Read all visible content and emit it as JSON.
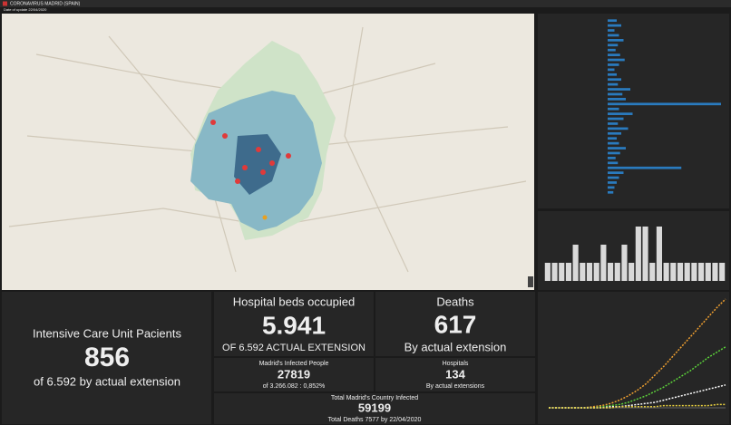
{
  "header": {
    "title": "CORONAVIRUS MADRID (SPAIN)",
    "subtitle": "Date of update 22/04/2020"
  },
  "indicators": [
    {
      "title": "Intensive Care Unit Pacients",
      "value": "856",
      "subtitle": "of 6.592 by actual extension"
    },
    {
      "title": "Hospital beds occupied",
      "value": "5.941",
      "subtitle": "OF 6.592 ACTUAL EXTENSION"
    },
    {
      "title": "Deaths",
      "value": "617",
      "subtitle": "By actual extension"
    },
    {
      "title": "Madrid's Infected People",
      "value": "27819",
      "subtitle": "of 3.266.082 : 0,852%"
    },
    {
      "title": "Hospitals",
      "value": "134",
      "subtitle": "By actual extensions"
    },
    {
      "title": "Total Madrid's Country Infected",
      "value": "59199",
      "subtitle": "Total Deaths 7577 by 22/04/2020"
    }
  ],
  "chart_data": [
    {
      "type": "hbar",
      "color": "#2a7bbf",
      "xlim": [
        0,
        100
      ],
      "categories": [
        null,
        null,
        null,
        null,
        null,
        null,
        null,
        null,
        null,
        null,
        null,
        null,
        null,
        null,
        null,
        null,
        null,
        null,
        null,
        null,
        null,
        null,
        null,
        null,
        null,
        null,
        null,
        null,
        null,
        null,
        null,
        null,
        null,
        null,
        null,
        null
      ],
      "values": [
        8,
        12,
        6,
        10,
        14,
        9,
        7,
        11,
        15,
        10,
        6,
        8,
        12,
        9,
        20,
        13,
        16,
        100,
        10,
        22,
        14,
        9,
        18,
        12,
        8,
        10,
        16,
        11,
        7,
        9,
        65,
        14,
        10,
        8,
        6,
        5
      ]
    },
    {
      "type": "bar",
      "color": "#d9d9d9",
      "ylim": [
        0,
        3.5
      ],
      "categories": [
        null,
        null,
        null,
        null,
        null,
        null,
        null,
        null,
        null,
        null,
        null,
        null,
        null,
        null,
        null,
        null,
        null,
        null,
        null,
        null,
        null,
        null,
        null,
        null,
        null,
        null
      ],
      "values": [
        1,
        1,
        1,
        1,
        2,
        1,
        1,
        1,
        2,
        1,
        1,
        2,
        1,
        3,
        3,
        1,
        3,
        1,
        1,
        1,
        1,
        1,
        1,
        1,
        1,
        1
      ]
    },
    {
      "type": "line",
      "ylim": [
        0,
        100
      ],
      "x": [
        null,
        null,
        null,
        null,
        null,
        null,
        null,
        null,
        null,
        null,
        null,
        null,
        null,
        null,
        null,
        null,
        null,
        null,
        null,
        null,
        null
      ],
      "series": [
        {
          "color": "#f0a030",
          "values": [
            0,
            0,
            0,
            0,
            0,
            1,
            2,
            4,
            7,
            11,
            16,
            22,
            30,
            38,
            47,
            56,
            65,
            74,
            83,
            92,
            100
          ]
        },
        {
          "color": "#5cd13a",
          "values": [
            0,
            0,
            0,
            0,
            0,
            0,
            1,
            2,
            3,
            5,
            8,
            11,
            15,
            19,
            24,
            29,
            34,
            40,
            46,
            51,
            56
          ]
        },
        {
          "color": "#ffffff",
          "values": [
            0,
            0,
            0,
            0,
            0,
            0,
            0,
            1,
            1,
            2,
            3,
            4,
            5,
            7,
            9,
            11,
            13,
            15,
            17,
            19,
            21
          ]
        },
        {
          "color": "#e8d040",
          "values": [
            0,
            0,
            0,
            0,
            0,
            0,
            0,
            0,
            1,
            1,
            1,
            1,
            1,
            2,
            2,
            2,
            2,
            2,
            2,
            3,
            3
          ]
        }
      ]
    }
  ]
}
